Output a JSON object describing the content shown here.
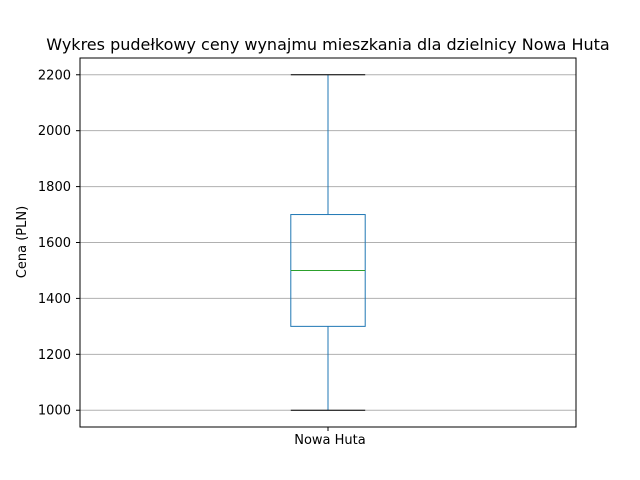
{
  "chart_data": {
    "type": "box",
    "title": "Wykres pudełkowy ceny wynajmu mieszkania dla dzielnicy  Nowa Huta",
    "xlabel": "",
    "ylabel": "Cena (PLN)",
    "categories": [
      "Nowa Huta"
    ],
    "boxes": [
      {
        "category": "Nowa Huta",
        "whisker_low": 1000,
        "q1": 1300,
        "median": 1500,
        "q3": 1700,
        "whisker_high": 2200
      }
    ],
    "ylim": [
      940,
      2260
    ],
    "yticks": [
      1000,
      1200,
      1400,
      1600,
      1800,
      2000,
      2200
    ],
    "grid": "horizontal",
    "colors": {
      "box": "#1f77b4",
      "median": "#2ca02c",
      "caps": "#000000",
      "grid": "#b0b0b0"
    }
  }
}
